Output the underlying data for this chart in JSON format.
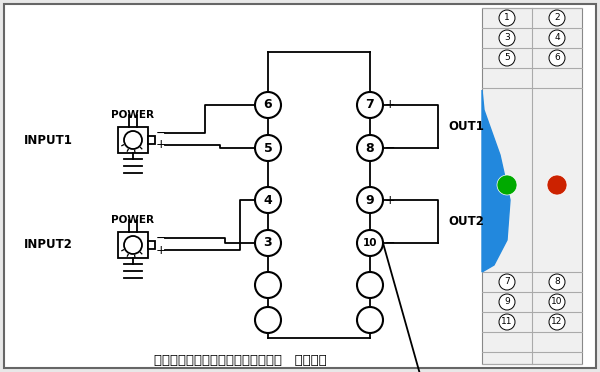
{
  "bg_color": "#e8e8e8",
  "main_bg": "#ffffff",
  "line_color": "#000000",
  "blue_color": "#2288dd",
  "green_dot": "#00aa00",
  "red_dot": "#cc2200",
  "title_text": "无源信号隔离器（输入侧获取能量）   二入二出",
  "input1_label": "INPUT1",
  "input2_label": "INPUT2",
  "power_label": "POWER",
  "out1_label": "OUT1",
  "out2_label": "OUT2",
  "panel_top_pairs": [
    [
      "1",
      "2"
    ],
    [
      "3",
      "4"
    ],
    [
      "5",
      "6"
    ]
  ],
  "panel_bot_pairs": [
    [
      "7",
      "8"
    ],
    [
      "9",
      "10"
    ],
    [
      "11",
      "12"
    ]
  ]
}
